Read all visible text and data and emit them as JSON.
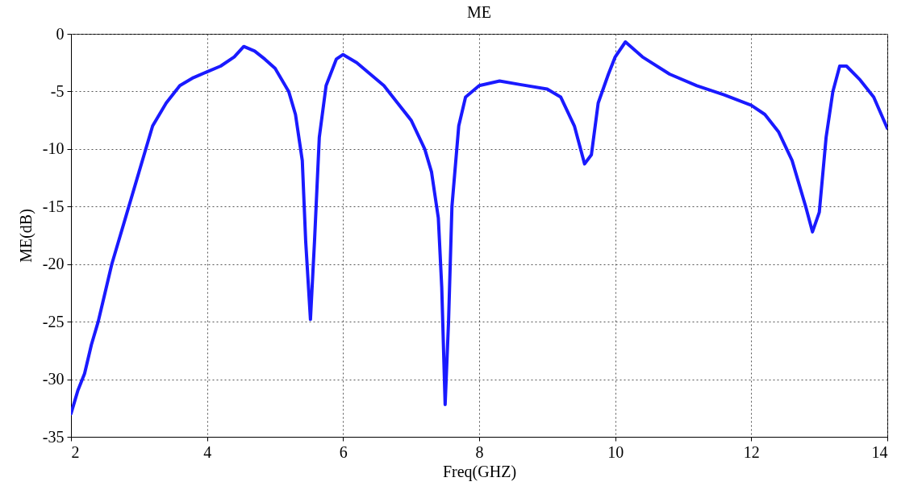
{
  "chart_data": {
    "type": "line",
    "title": "ME",
    "xlabel": "Freq(GHZ)",
    "ylabel": "ME(dB)",
    "xlim": [
      2,
      14
    ],
    "xticks": [
      2,
      4,
      6,
      8,
      10,
      12,
      14
    ],
    "ylim": [
      -35,
      0
    ],
    "yticks": [
      -35,
      -30,
      -25,
      -20,
      -15,
      -10,
      -5,
      0
    ],
    "grid": true,
    "marker": "none",
    "line_style": "solid",
    "series": [
      {
        "color": "#1a1aff",
        "x": [
          2,
          2.1,
          2.2,
          2.3,
          2.4,
          2.5,
          2.6,
          2.8,
          3.0,
          3.2,
          3.4,
          3.6,
          3.8,
          4.0,
          4.2,
          4.4,
          4.54,
          4.7,
          4.85,
          5.0,
          5.2,
          5.3,
          5.4,
          5.45,
          5.52,
          5.58,
          5.65,
          5.75,
          5.9,
          6.0,
          6.2,
          6.4,
          6.6,
          6.8,
          7.0,
          7.2,
          7.3,
          7.4,
          7.45,
          7.5,
          7.55,
          7.6,
          7.7,
          7.8,
          8.0,
          8.3,
          8.6,
          9.0,
          9.2,
          9.4,
          9.55,
          9.65,
          9.75,
          9.9,
          10.0,
          10.15,
          10.4,
          10.8,
          11.2,
          11.6,
          12.0,
          12.2,
          12.4,
          12.6,
          12.8,
          12.9,
          13.0,
          13.1,
          13.2,
          13.3,
          13.4,
          13.6,
          13.8,
          14.0
        ],
        "values": [
          -33,
          -31,
          -29.5,
          -27,
          -25,
          -22.5,
          -20,
          -16,
          -12,
          -8,
          -6,
          -4.5,
          -3.8,
          -3.3,
          -2.8,
          -2,
          -1.1,
          -1.5,
          -2.2,
          -3,
          -5,
          -7,
          -11,
          -18,
          -24.8,
          -18,
          -9,
          -4.5,
          -2.2,
          -1.8,
          -2.5,
          -3.5,
          -4.5,
          -6,
          -7.5,
          -10,
          -12,
          -16,
          -22,
          -32.2,
          -25,
          -15,
          -8,
          -5.5,
          -4.5,
          -4.1,
          -4.4,
          -4.8,
          -5.5,
          -8,
          -11.3,
          -10.5,
          -6,
          -3.5,
          -2,
          -0.7,
          -2,
          -3.5,
          -4.5,
          -5.3,
          -6.2,
          -7,
          -8.5,
          -11,
          -15,
          -17.2,
          -15.5,
          -9,
          -5,
          -2.8,
          -2.8,
          -4,
          -5.5,
          -8.2
        ]
      }
    ]
  }
}
